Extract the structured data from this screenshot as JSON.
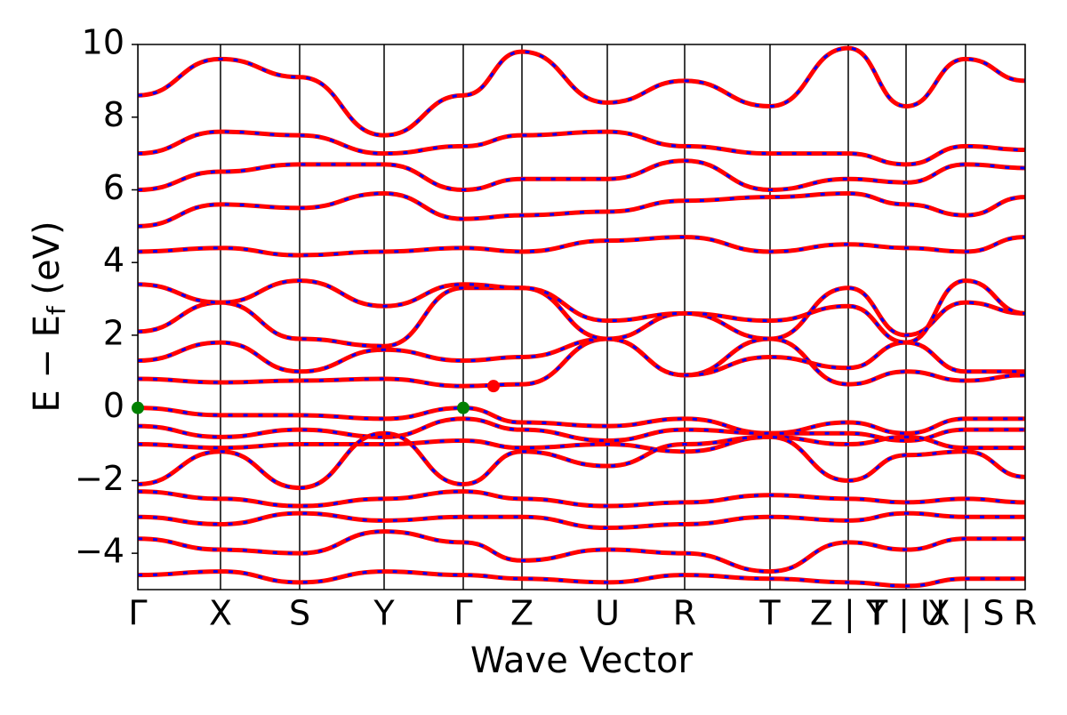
{
  "chart_data": {
    "type": "bands",
    "xlabel": "Wave Vector",
    "ylabel": [
      "E − E",
      "f",
      " (eV)"
    ],
    "xlim": [
      0,
      9.98
    ],
    "xticks": [
      {
        "value": 0,
        "label": "Γ"
      },
      {
        "value": 0.93,
        "label": "X"
      },
      {
        "value": 1.82,
        "label": "S"
      },
      {
        "value": 2.77,
        "label": "Y"
      },
      {
        "value": 3.66,
        "label": "Γ"
      },
      {
        "value": 4.32,
        "label": "Z"
      },
      {
        "value": 5.28,
        "label": "U"
      },
      {
        "value": 6.15,
        "label": "R"
      },
      {
        "value": 7.11,
        "label": "T"
      },
      {
        "value": 7.99,
        "label": "Z | Y"
      },
      {
        "value": 8.64,
        "label": "T | U"
      },
      {
        "value": 9.31,
        "label": "X | S"
      },
      {
        "value": 9.98,
        "label": "R"
      }
    ],
    "ylim": [
      -5,
      10
    ],
    "yticks": [
      {
        "value": -4,
        "label": "−4"
      },
      {
        "value": -2,
        "label": "−2"
      },
      0,
      2,
      4,
      6,
      8,
      10
    ],
    "x": [
      0,
      0.93,
      1.82,
      2.77,
      3.66,
      4.32,
      5.28,
      6.15,
      7.11,
      7.99,
      8.64,
      9.31,
      9.98
    ],
    "color": "#ff0000",
    "dash_color": "#0000ff",
    "series": [
      {
        "values": [
          0,
          -0.2,
          -0.2,
          -0.3,
          0,
          -0.4,
          -0.5,
          -0.3,
          -0.7,
          -0.4,
          -0.7,
          -0.3,
          -0.3
        ]
      },
      {
        "values": [
          -0.5,
          -0.8,
          -0.6,
          -0.8,
          -0.3,
          -0.6,
          -0.9,
          -0.6,
          -0.7,
          -0.7,
          -0.9,
          -0.6,
          -0.6
        ]
      },
      {
        "values": [
          -1.0,
          -1.1,
          -1.0,
          -1.0,
          -0.9,
          -1.1,
          -1.0,
          -1.2,
          -0.8,
          -1.0,
          -0.8,
          -1.1,
          -1.1
        ]
      },
      {
        "values": [
          -2.1,
          -1.2,
          -2.2,
          -0.7,
          -2.1,
          -1.2,
          -1.6,
          -1.0,
          -0.8,
          -2.0,
          -1.3,
          -1.2,
          -1.9
        ]
      },
      {
        "values": [
          -2.3,
          -2.5,
          -2.7,
          -2.5,
          -2.3,
          -2.5,
          -2.7,
          -2.6,
          -2.4,
          -2.5,
          -2.6,
          -2.5,
          -2.6
        ]
      },
      {
        "values": [
          -3.0,
          -3.2,
          -2.9,
          -3.1,
          -3.0,
          -3.0,
          -3.3,
          -3.2,
          -3.0,
          -3.1,
          -2.9,
          -3.0,
          -3.0
        ]
      },
      {
        "values": [
          -3.6,
          -3.9,
          -4.0,
          -3.4,
          -3.7,
          -4.2,
          -3.9,
          -4.0,
          -4.5,
          -3.7,
          -3.9,
          -3.6,
          -3.6
        ]
      },
      {
        "values": [
          -4.6,
          -4.5,
          -4.8,
          -4.5,
          -4.6,
          -4.7,
          -4.8,
          -4.6,
          -4.7,
          -4.8,
          -4.9,
          -4.7,
          -4.7
        ]
      },
      {
        "values": [
          0.8,
          0.7,
          0.75,
          0.8,
          0.6,
          0.65,
          1.9,
          0.9,
          1.9,
          0.65,
          1.0,
          0.75,
          0.9
        ]
      },
      {
        "values": [
          1.3,
          1.8,
          1.0,
          1.6,
          1.3,
          1.4,
          1.9,
          0.9,
          1.4,
          1.1,
          1.8,
          1.0,
          1.0
        ]
      },
      {
        "values": [
          2.1,
          2.9,
          1.9,
          1.7,
          3.3,
          3.3,
          1.9,
          2.6,
          1.9,
          3.3,
          2.0,
          2.9,
          2.6
        ]
      },
      {
        "values": [
          3.4,
          2.9,
          3.5,
          2.8,
          3.4,
          3.3,
          2.4,
          2.6,
          2.4,
          2.8,
          1.8,
          3.5,
          2.6
        ]
      },
      {
        "values": [
          4.3,
          4.4,
          4.2,
          4.3,
          4.4,
          4.3,
          4.6,
          4.7,
          4.3,
          4.5,
          4.4,
          4.3,
          4.7
        ]
      },
      {
        "values": [
          5.0,
          5.6,
          5.5,
          5.9,
          5.2,
          5.3,
          5.4,
          5.7,
          5.8,
          5.9,
          5.6,
          5.3,
          5.8
        ]
      },
      {
        "values": [
          6.0,
          6.5,
          6.7,
          6.7,
          6.0,
          6.3,
          6.3,
          6.8,
          6.0,
          6.3,
          6.2,
          6.7,
          6.6
        ]
      },
      {
        "values": [
          7.0,
          7.6,
          7.5,
          7.0,
          7.2,
          7.5,
          7.6,
          7.2,
          7.0,
          7.0,
          6.7,
          7.2,
          7.1
        ]
      },
      {
        "values": [
          8.6,
          9.6,
          9.1,
          7.5,
          8.6,
          9.8,
          8.4,
          9.0,
          8.3,
          9.9,
          8.3,
          9.6,
          9.0
        ]
      }
    ],
    "markers": [
      {
        "x": 0,
        "y": 0,
        "color": "#008000"
      },
      {
        "x": 3.66,
        "y": 0,
        "color": "#008000"
      },
      {
        "x": 4.0,
        "y": 0.6,
        "color": "#ff0000"
      }
    ]
  }
}
